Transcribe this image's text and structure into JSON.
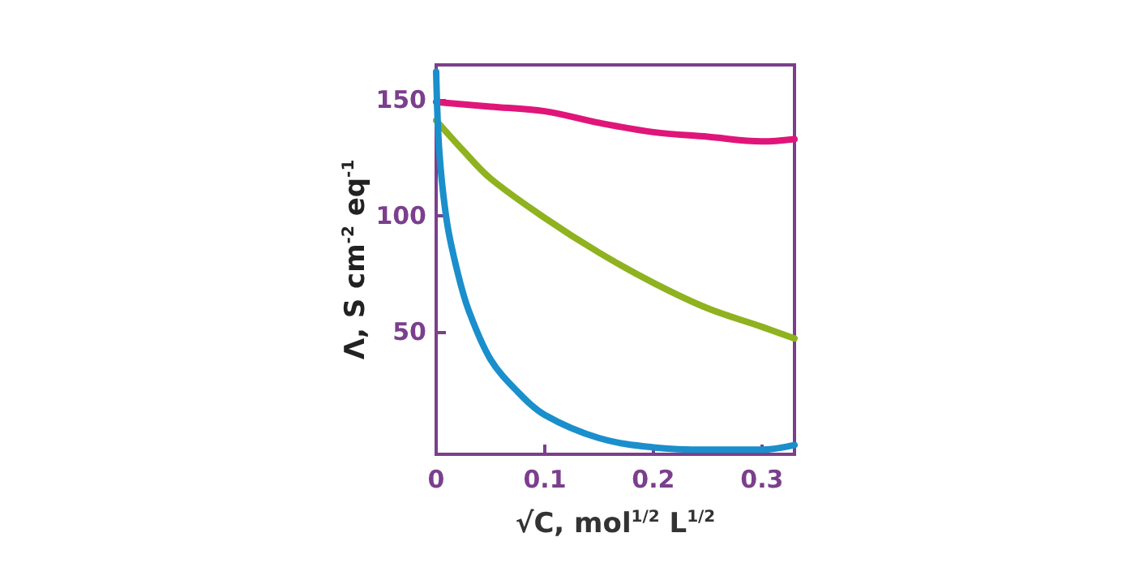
{
  "chart_data": {
    "type": "line",
    "xlabel": "√C, mol$^{1/2}$ L$^{1/2}$",
    "ylabel": "Λ, S cm$^{-2}$ eq$^{-1}$",
    "xlim": [
      0,
      0.33
    ],
    "xticks": [
      0,
      0.1,
      0.2,
      0.3
    ],
    "ylim": [
      -3,
      165
    ],
    "yticks": [
      50,
      100,
      150
    ],
    "grid": false,
    "marker": "none",
    "line_style": "solid",
    "series": [
      {
        "color": "#e0157a",
        "x": [
          0,
          0.05,
          0.1,
          0.15,
          0.2,
          0.25,
          0.3,
          0.33
        ],
        "values": [
          149,
          147,
          145,
          140,
          136,
          134,
          132,
          133
        ]
      },
      {
        "color": "#8fb21f",
        "x": [
          0,
          0.025,
          0.05,
          0.1,
          0.15,
          0.2,
          0.25,
          0.3,
          0.33
        ],
        "values": [
          141,
          128,
          116,
          99,
          84,
          71,
          60,
          52,
          47
        ]
      },
      {
        "color": "#1a8fcc",
        "x": [
          0,
          0.003,
          0.01,
          0.02,
          0.03,
          0.05,
          0.075,
          0.1,
          0.15,
          0.2,
          0.25,
          0.3,
          0.33
        ],
        "values": [
          162,
          127,
          97,
          75,
          59,
          38,
          24,
          14,
          4,
          0,
          -1,
          -1,
          1
        ]
      }
    ]
  }
}
